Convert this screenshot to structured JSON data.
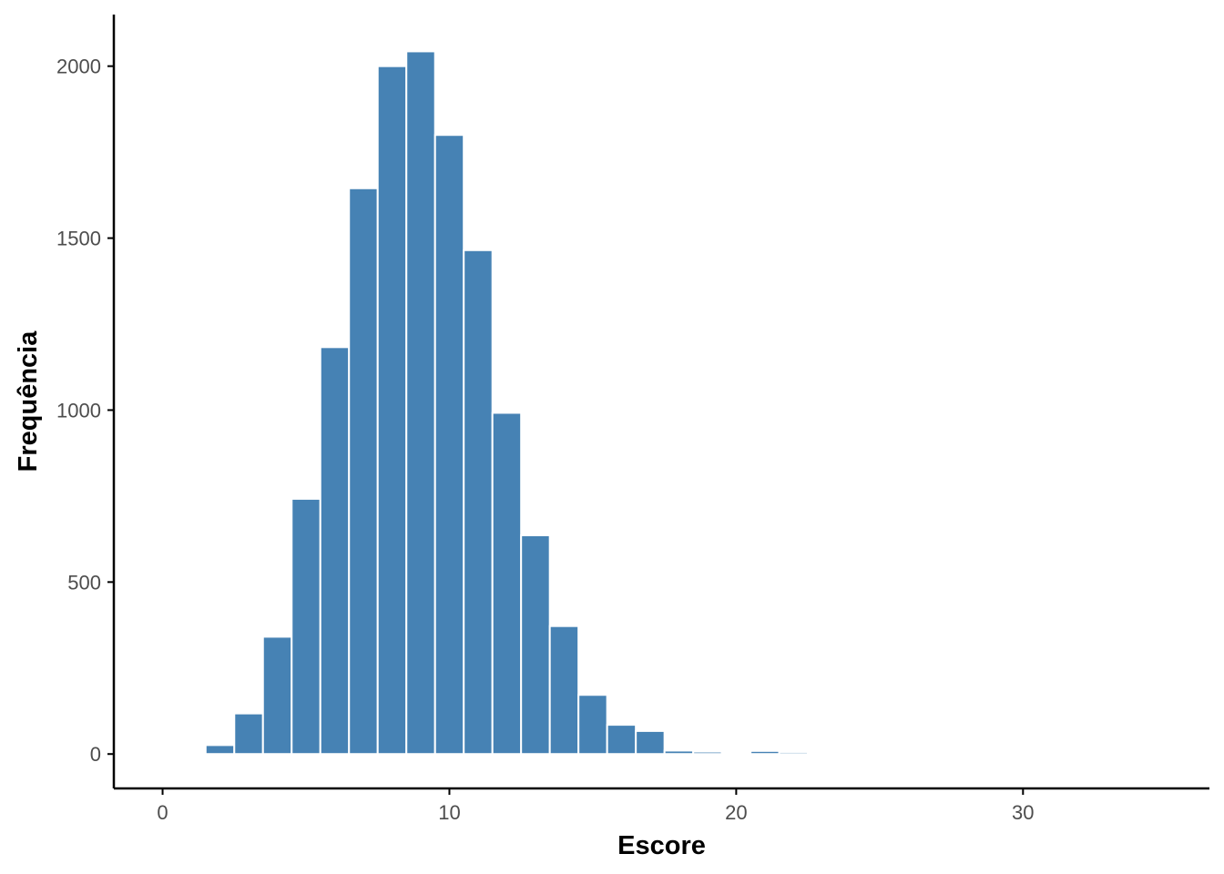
{
  "chart_data": {
    "type": "bar",
    "title": "",
    "xlabel": "Escore",
    "ylabel": "Frequência",
    "bin_width": 1,
    "bins": [
      {
        "x": 2,
        "value": 26
      },
      {
        "x": 3,
        "value": 118
      },
      {
        "x": 4,
        "value": 341
      },
      {
        "x": 5,
        "value": 742
      },
      {
        "x": 6,
        "value": 1183
      },
      {
        "x": 7,
        "value": 1645
      },
      {
        "x": 8,
        "value": 2000
      },
      {
        "x": 9,
        "value": 2043
      },
      {
        "x": 10,
        "value": 1800
      },
      {
        "x": 11,
        "value": 1465
      },
      {
        "x": 12,
        "value": 992
      },
      {
        "x": 13,
        "value": 636
      },
      {
        "x": 14,
        "value": 372
      },
      {
        "x": 15,
        "value": 172
      },
      {
        "x": 16,
        "value": 85
      },
      {
        "x": 17,
        "value": 67
      },
      {
        "x": 18,
        "value": 10
      },
      {
        "x": 19,
        "value": 7
      },
      {
        "x": 20,
        "value": 4
      },
      {
        "x": 21,
        "value": 9
      },
      {
        "x": 22,
        "value": 6
      },
      {
        "x": 23,
        "value": 5
      },
      {
        "x": 24,
        "value": 3
      }
    ],
    "xlim": [
      -1.7,
      36.5
    ],
    "ylim": [
      -100,
      2150
    ],
    "x_ticks": [
      0,
      10,
      20,
      30
    ],
    "y_ticks": [
      0,
      500,
      1000,
      1500,
      2000
    ],
    "bar_color": "#4682B4",
    "bar_border_color": "#FFFFFF",
    "axis_color": "#000000",
    "tick_label_color": "#4D4D4D",
    "grid": false,
    "legend": "none"
  }
}
